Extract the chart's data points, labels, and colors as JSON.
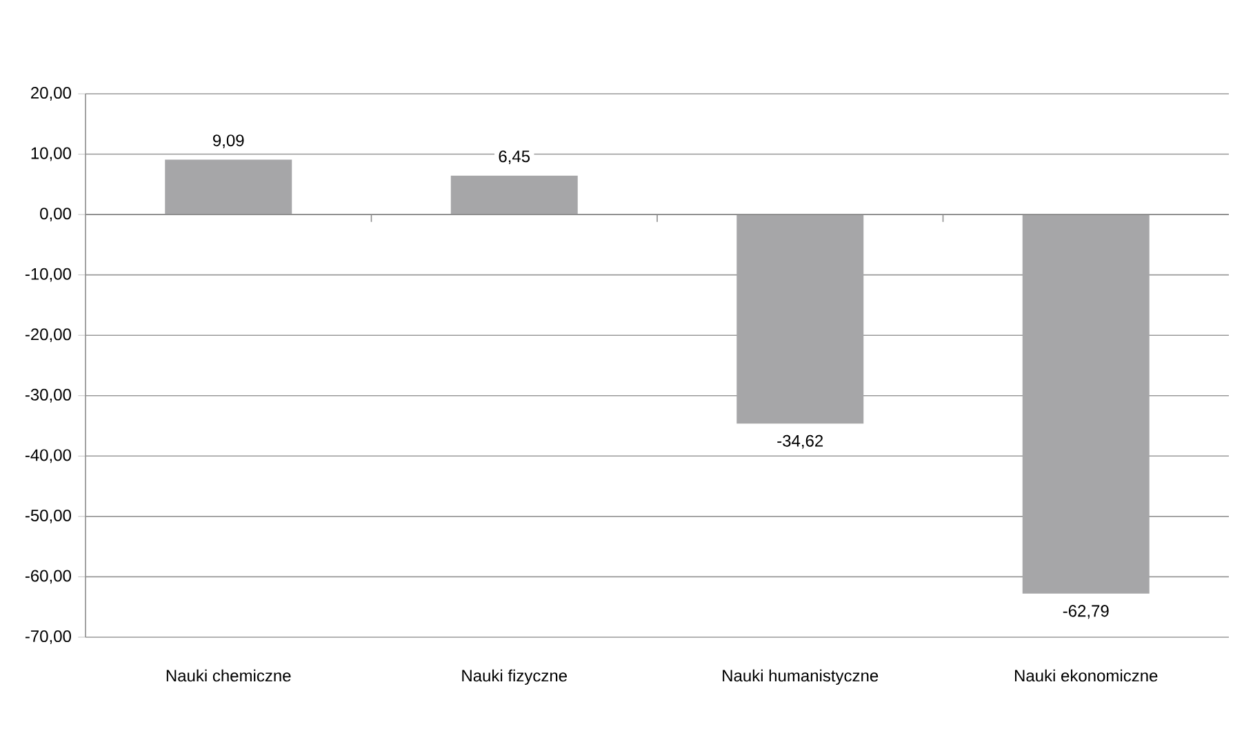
{
  "chart_data": {
    "type": "bar",
    "categories": [
      "Nauki chemiczne",
      "Nauki fizyczne",
      "Nauki humanistyczne",
      "Nauki ekonomiczne"
    ],
    "values": [
      9.09,
      6.45,
      -34.62,
      -62.79
    ],
    "value_labels": [
      "9,09",
      "6,45",
      "-34,62",
      "-62,79"
    ],
    "color": "#a6a6a8",
    "ylim": [
      -70,
      20
    ],
    "yticks": [
      {
        "value": -70,
        "label": "-70,00"
      },
      {
        "value": -60,
        "label": "-60,00"
      },
      {
        "value": -50,
        "label": "-50,00"
      },
      {
        "value": -40,
        "label": "-40,00"
      },
      {
        "value": -30,
        "label": "-30,00"
      },
      {
        "value": -20,
        "label": "-20,00"
      },
      {
        "value": -10,
        "label": "-10,00"
      },
      {
        "value": 0,
        "label": "0,00"
      },
      {
        "value": 10,
        "label": "10,00"
      },
      {
        "value": 20,
        "label": "20,00"
      }
    ],
    "grid": "y"
  }
}
